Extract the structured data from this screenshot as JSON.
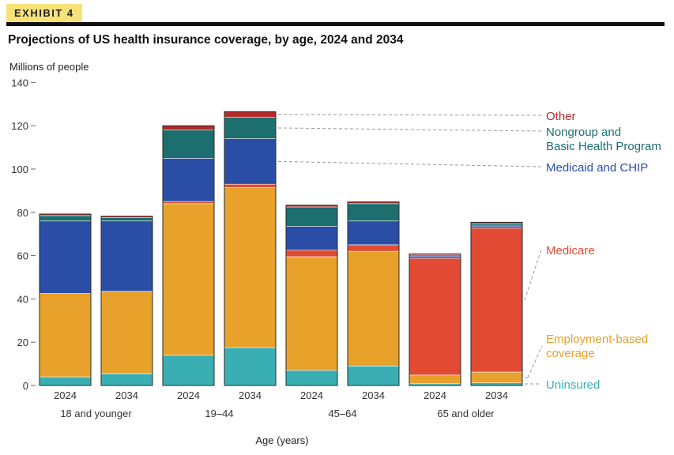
{
  "exhibit_label": "EXHIBIT 4",
  "colors": {
    "Uninsured": "#3aafb3",
    "Employment-based coverage": "#e8a12a",
    "Medicare": "#e24a33",
    "Medicaid and CHIP": "#2a4ea6",
    "Nongroup and Basic Health Program": "#1d6e6e",
    "Other": "#b32a2a"
  },
  "chart_data": {
    "type": "bar",
    "stacked": true,
    "title": "Projections of US health insurance coverage, by age, 2024 and 2034",
    "ylabel": "Millions of people",
    "xlabel": "Age (years)",
    "ylim": [
      0,
      140
    ],
    "yticks": [
      0,
      20,
      40,
      60,
      80,
      100,
      120,
      140
    ],
    "grid": false,
    "legend_position": "right",
    "groups": [
      "18 and younger",
      "19–44",
      "45–64",
      "65 and older"
    ],
    "categories": [
      "2024",
      "2034",
      "2024",
      "2034",
      "2024",
      "2034",
      "2024",
      "2034"
    ],
    "series": [
      {
        "name": "Uninsured",
        "values": [
          4,
          5.5,
          14,
          17.5,
          7,
          9,
          0.8,
          1.2
        ]
      },
      {
        "name": "Employment-based coverage",
        "values": [
          38.5,
          38,
          70,
          74,
          52.5,
          53,
          4,
          5
        ]
      },
      {
        "name": "Medicare",
        "values": [
          0,
          0,
          1,
          1.5,
          3,
          3,
          54,
          66.5
        ]
      },
      {
        "name": "Medicaid and CHIP",
        "values": [
          33.5,
          32.5,
          20,
          21,
          11,
          11,
          1,
          1
        ]
      },
      {
        "name": "Nongroup and Basic Health Program",
        "values": [
          2.5,
          1.5,
          13,
          10,
          9,
          8,
          0.5,
          1
        ]
      },
      {
        "name": "Other",
        "values": [
          0.7,
          0.7,
          2,
          2.5,
          0.8,
          0.8,
          0.5,
          0.7
        ]
      }
    ]
  }
}
